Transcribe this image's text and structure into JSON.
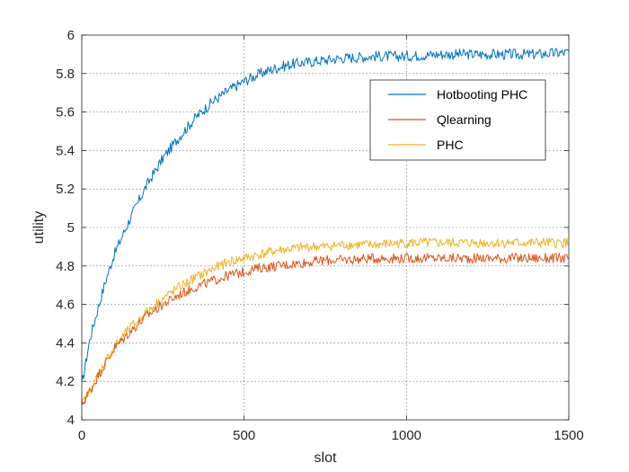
{
  "chart_data": {
    "type": "line",
    "xlabel": "slot",
    "ylabel": "utility",
    "xlim": [
      0,
      1500
    ],
    "ylim": [
      4,
      6
    ],
    "x_ticks": [
      0,
      500,
      1000,
      1500
    ],
    "x_tick_labels": [
      "0",
      "500",
      "1000",
      "1500"
    ],
    "y_ticks": [
      4,
      4.2,
      4.4,
      4.6,
      4.8,
      5,
      5.2,
      5.4,
      5.6,
      5.8,
      6
    ],
    "y_tick_labels": [
      "4",
      "4.2",
      "4.4",
      "4.6",
      "4.8",
      "5",
      "5.2",
      "5.4",
      "5.6",
      "5.8",
      "6"
    ],
    "grid": true,
    "legend_position": "top-right",
    "x": [
      0,
      25,
      50,
      75,
      100,
      150,
      200,
      250,
      300,
      350,
      400,
      450,
      500,
      550,
      600,
      650,
      700,
      750,
      800,
      900,
      1000,
      1100,
      1200,
      1300,
      1400,
      1500
    ],
    "series": [
      {
        "name": "Hotbooting PHC",
        "color": "#0072BD",
        "values": [
          4.18,
          4.42,
          4.58,
          4.73,
          4.86,
          5.05,
          5.22,
          5.36,
          5.47,
          5.57,
          5.65,
          5.71,
          5.76,
          5.8,
          5.83,
          5.85,
          5.86,
          5.87,
          5.88,
          5.89,
          5.89,
          5.9,
          5.9,
          5.9,
          5.9,
          5.91
        ]
      },
      {
        "name": "Qlearning",
        "color": "#D95319",
        "values": [
          4.08,
          4.15,
          4.23,
          4.3,
          4.37,
          4.46,
          4.54,
          4.6,
          4.65,
          4.69,
          4.72,
          4.75,
          4.77,
          4.79,
          4.8,
          4.81,
          4.82,
          4.83,
          4.83,
          4.84,
          4.84,
          4.84,
          4.84,
          4.84,
          4.84,
          4.84
        ]
      },
      {
        "name": "PHC",
        "color": "#EDB120",
        "values": [
          4.08,
          4.15,
          4.23,
          4.31,
          4.38,
          4.48,
          4.56,
          4.63,
          4.69,
          4.74,
          4.78,
          4.82,
          4.84,
          4.86,
          4.88,
          4.89,
          4.9,
          4.9,
          4.91,
          4.91,
          4.92,
          4.92,
          4.92,
          4.92,
          4.92,
          4.92
        ]
      }
    ]
  }
}
